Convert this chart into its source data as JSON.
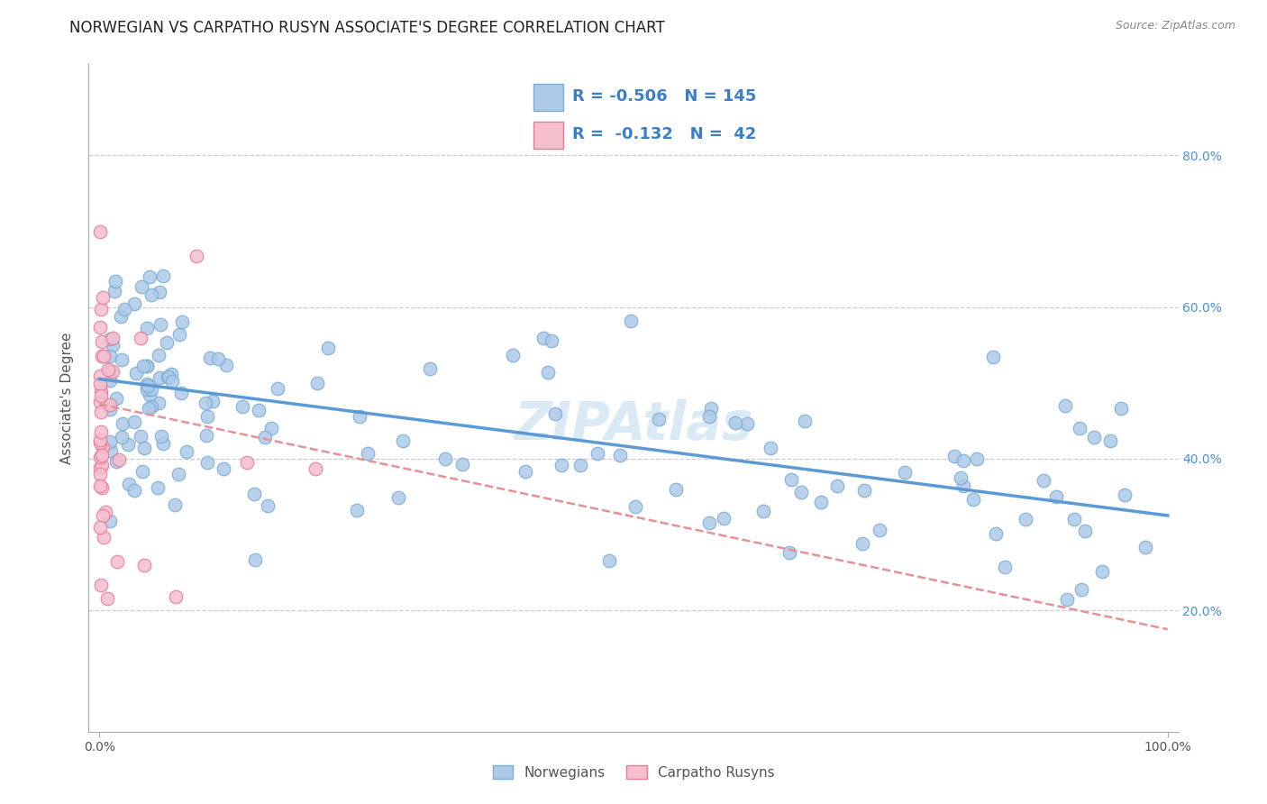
{
  "title": "NORWEGIAN VS CARPATHO RUSYN ASSOCIATE'S DEGREE CORRELATION CHART",
  "source": "Source: ZipAtlas.com",
  "ylabel": "Associate's Degree",
  "ytick_labels": [
    "20.0%",
    "40.0%",
    "60.0%",
    "80.0%"
  ],
  "ytick_positions": [
    0.2,
    0.4,
    0.6,
    0.8
  ],
  "xlim": [
    -0.01,
    1.01
  ],
  "ylim": [
    0.04,
    0.92
  ],
  "norwegian_fill": "#adc9e8",
  "norwegian_edge": "#7aadd4",
  "carpatho_fill": "#f5bfce",
  "carpatho_edge": "#e87a9a",
  "line_norwegian_color": "#5b9bd5",
  "line_carpatho_color": "#e8909a",
  "legend_R_norwegian": "-0.506",
  "legend_N_norwegian": "145",
  "legend_R_carpatho": "-0.132",
  "legend_N_carpatho": "42",
  "watermark": "ZIPAtlas",
  "background_color": "#ffffff",
  "grid_color": "#cccccc",
  "title_fontsize": 12,
  "tick_fontsize": 10,
  "legend_fontsize": 13,
  "watermark_fontsize": 42,
  "watermark_color": "#daeaf5",
  "marker_size": 110,
  "nor_line_y0": 0.505,
  "nor_line_y1": 0.325,
  "car_line_y0": 0.472,
  "car_line_y1": 0.175
}
